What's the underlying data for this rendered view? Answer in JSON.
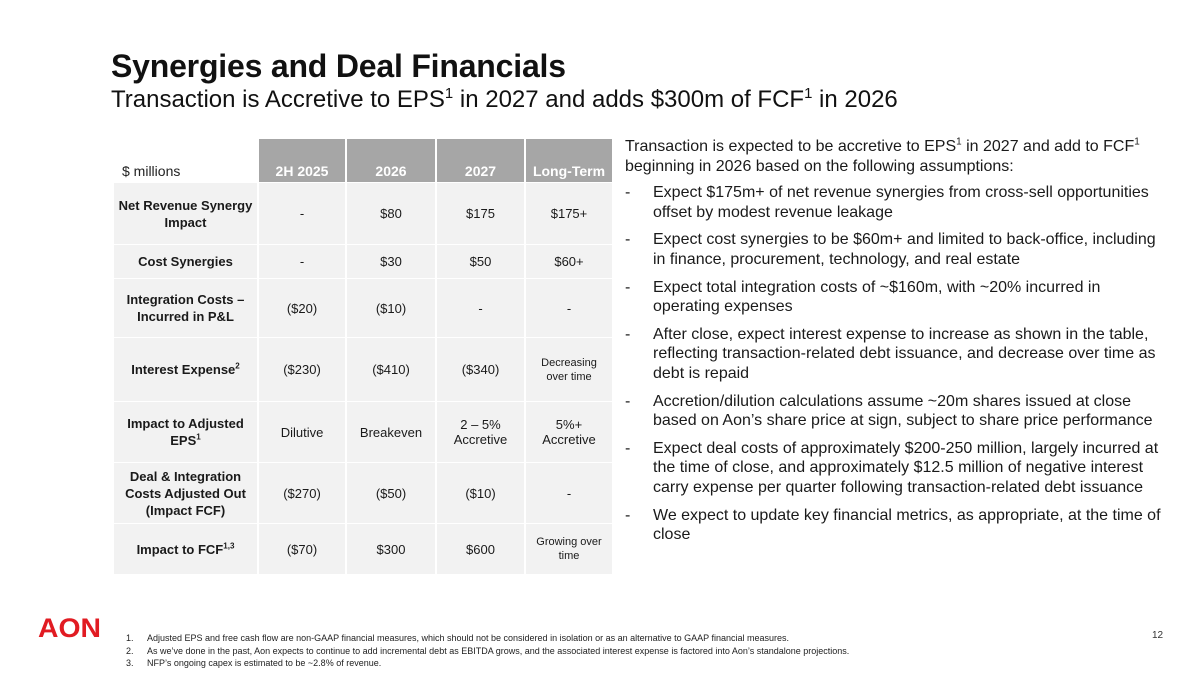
{
  "slide": {
    "title": "Synergies and Deal Financials",
    "subtitle": {
      "pre": "Transaction is Accretive to EPS",
      "sup1": "1",
      "mid": " in 2027 and adds $300m of FCF",
      "sup2": "1",
      "post": " in 2026"
    },
    "page_number": "12"
  },
  "table": {
    "unit_label": "$ millions",
    "headers": [
      "2H 2025",
      "2026",
      "2027",
      "Long-Term"
    ],
    "rows": [
      {
        "label": "Net Revenue Synergy Impact",
        "label_sup": "",
        "cells": [
          "-",
          "$80",
          "$175",
          "$175+"
        ]
      },
      {
        "label": "Cost Synergies",
        "label_sup": "",
        "cells": [
          "-",
          "$30",
          "$50",
          "$60+"
        ]
      },
      {
        "label": "Integration Costs – Incurred in P&L",
        "label_sup": "",
        "cells": [
          "($20)",
          "($10)",
          "-",
          "-"
        ]
      },
      {
        "label": "Interest Expense",
        "label_sup": "2",
        "cells": [
          "($230)",
          "($410)",
          "($340)",
          "Decreasing over time"
        ]
      },
      {
        "label": "Impact to Adjusted EPS",
        "label_sup": "1",
        "cells": [
          "Dilutive",
          "Breakeven",
          "2 – 5% Accretive",
          "5%+ Accretive"
        ]
      },
      {
        "label": "Deal & Integration Costs Adjusted Out (Impact FCF)",
        "label_sup": "",
        "cells": [
          "($270)",
          "($50)",
          "($10)",
          "-"
        ]
      },
      {
        "label": "Impact to FCF",
        "label_sup": "1,3",
        "cells": [
          "($70)",
          "$300",
          "$600",
          "Growing over time"
        ]
      }
    ]
  },
  "assumptions": {
    "intro": {
      "pre": "Transaction is expected to be accretive to EPS",
      "sup1": "1",
      "mid": " in 2027 and add to FCF",
      "sup2": "1",
      "post": " beginning in 2026 based on the following assumptions:"
    },
    "bullets": [
      "Expect $175m+ of net revenue synergies from cross-sell opportunities offset by modest revenue leakage",
      "Expect cost synergies to be $60m+ and limited to back-office, including in finance, procurement, technology, and real estate",
      "Expect total integration costs of ~$160m, with ~20% incurred in operating expenses",
      "After close, expect interest expense to increase as shown in the table, reflecting transaction-related debt issuance, and decrease over time as debt is repaid",
      "Accretion/dilution calculations assume ~20m shares issued at close based on Aon’s share price at sign, subject to share price performance",
      "Expect deal costs of approximately $200-250 million, largely incurred at the time of close, and approximately $12.5 million of negative interest carry expense per quarter following transaction-related debt issuance",
      "We expect to update key financial metrics, as appropriate, at the time of close"
    ]
  },
  "footnotes": [
    {
      "num": "1.",
      "text": "Adjusted EPS and free cash flow are non-GAAP financial measures, which should not be considered in isolation or as an alternative to GAAP financial measures."
    },
    {
      "num": "2.",
      "text": "As we’ve done in the past, Aon expects to continue to add incremental debt as EBITDA grows, and the associated interest expense is factored into Aon’s standalone projections."
    },
    {
      "num": "3.",
      "text": "NFP’s ongoing capex is estimated to be ~2.8% of revenue."
    }
  ],
  "logo": {
    "text": "AON",
    "color": "#e11b22"
  },
  "colors": {
    "header_bg": "#a6a6a6",
    "cell_bg": "#f2f2f2",
    "brand": "#e11b22"
  }
}
